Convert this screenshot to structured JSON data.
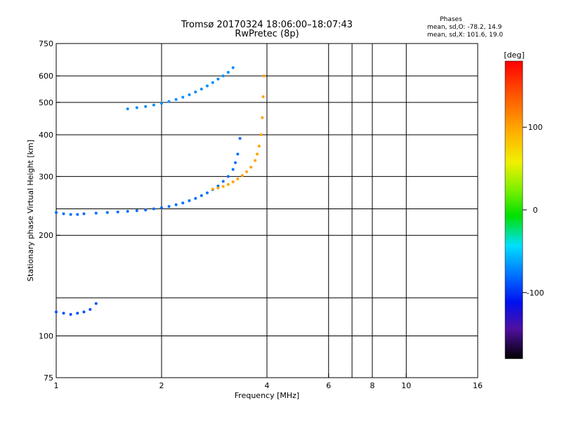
{
  "chart_data": {
    "type": "scatter",
    "title": "Tromsø 20170324 18:06:00–18:07:43",
    "subtitle": "RwPretec (8p)",
    "xlabel": "Frequency [MHz]",
    "ylabel": "Stationary phase Virtual Height [km]",
    "x_scale": "log",
    "y_scale": "log",
    "xlim": [
      1,
      16
    ],
    "ylim": [
      75,
      750
    ],
    "x_ticks": [
      1,
      2,
      4,
      6,
      8,
      10,
      16
    ],
    "x_tick_labels": [
      "1",
      "2",
      "4",
      "6",
      "8",
      "10",
      "16"
    ],
    "x_grid_lines": [
      2,
      4,
      6,
      7,
      8,
      10
    ],
    "y_ticks": [
      75,
      100,
      200,
      300,
      400,
      500,
      600,
      750
    ],
    "y_tick_labels": [
      "75",
      "100",
      "200",
      "300",
      "400",
      "500",
      "600",
      "750"
    ],
    "y_grid_lines": [
      100,
      130,
      200,
      240,
      300,
      400,
      500,
      600
    ],
    "grid": true,
    "stats": {
      "header": "Phases",
      "line_o": "mean, sd,O: -78.2, 14.9",
      "line_x": "mean, sd,X: 101.6, 19.0"
    },
    "colorbar": {
      "label": "[deg]",
      "range": [
        -180,
        180
      ],
      "ticks": [
        100,
        0,
        -100
      ],
      "tick_labels": [
        "100",
        "0",
        "-100"
      ]
    },
    "series": [
      {
        "mode": "O",
        "color_phase": -80,
        "x": [
          1.0,
          1.05,
          1.1,
          1.15,
          1.2,
          1.3,
          1.4,
          1.5,
          1.6,
          1.7,
          1.8,
          1.9,
          2.0,
          2.1,
          2.2,
          2.3,
          2.4,
          2.5,
          2.6,
          2.7,
          2.8,
          2.9,
          3.0,
          3.1,
          3.2,
          3.25,
          3.3,
          3.35
        ],
        "y": [
          234,
          232,
          231,
          231,
          232,
          233,
          234,
          235,
          236,
          237,
          238,
          240,
          242,
          244,
          247,
          250,
          254,
          258,
          263,
          268,
          274,
          281,
          290,
          300,
          315,
          330,
          350,
          390
        ]
      },
      {
        "mode": "O",
        "color_phase": -70,
        "x": [
          1.6,
          1.7,
          1.8,
          1.9,
          2.0,
          2.1,
          2.2,
          2.3,
          2.4,
          2.5,
          2.6,
          2.7,
          2.8,
          2.9,
          3.0,
          3.1,
          3.2
        ],
        "y": [
          478,
          482,
          486,
          491,
          497,
          503,
          510,
          518,
          527,
          537,
          548,
          560,
          573,
          587,
          600,
          615,
          635
        ]
      },
      {
        "mode": "X",
        "color_phase": 100,
        "x": [
          2.8,
          2.9,
          3.0,
          3.1,
          3.2,
          3.3,
          3.4,
          3.5,
          3.6,
          3.7,
          3.75,
          3.8,
          3.85,
          3.88,
          3.9,
          3.92
        ],
        "y": [
          275,
          277,
          280,
          284,
          289,
          295,
          302,
          310,
          320,
          335,
          350,
          370,
          400,
          450,
          520,
          600
        ]
      },
      {
        "mode": "O-low",
        "color_phase": -90,
        "x": [
          1.0,
          1.05,
          1.1,
          1.15,
          1.2,
          1.25,
          1.3
        ],
        "y": [
          118,
          117,
          116,
          117,
          118,
          120,
          125
        ]
      }
    ]
  }
}
